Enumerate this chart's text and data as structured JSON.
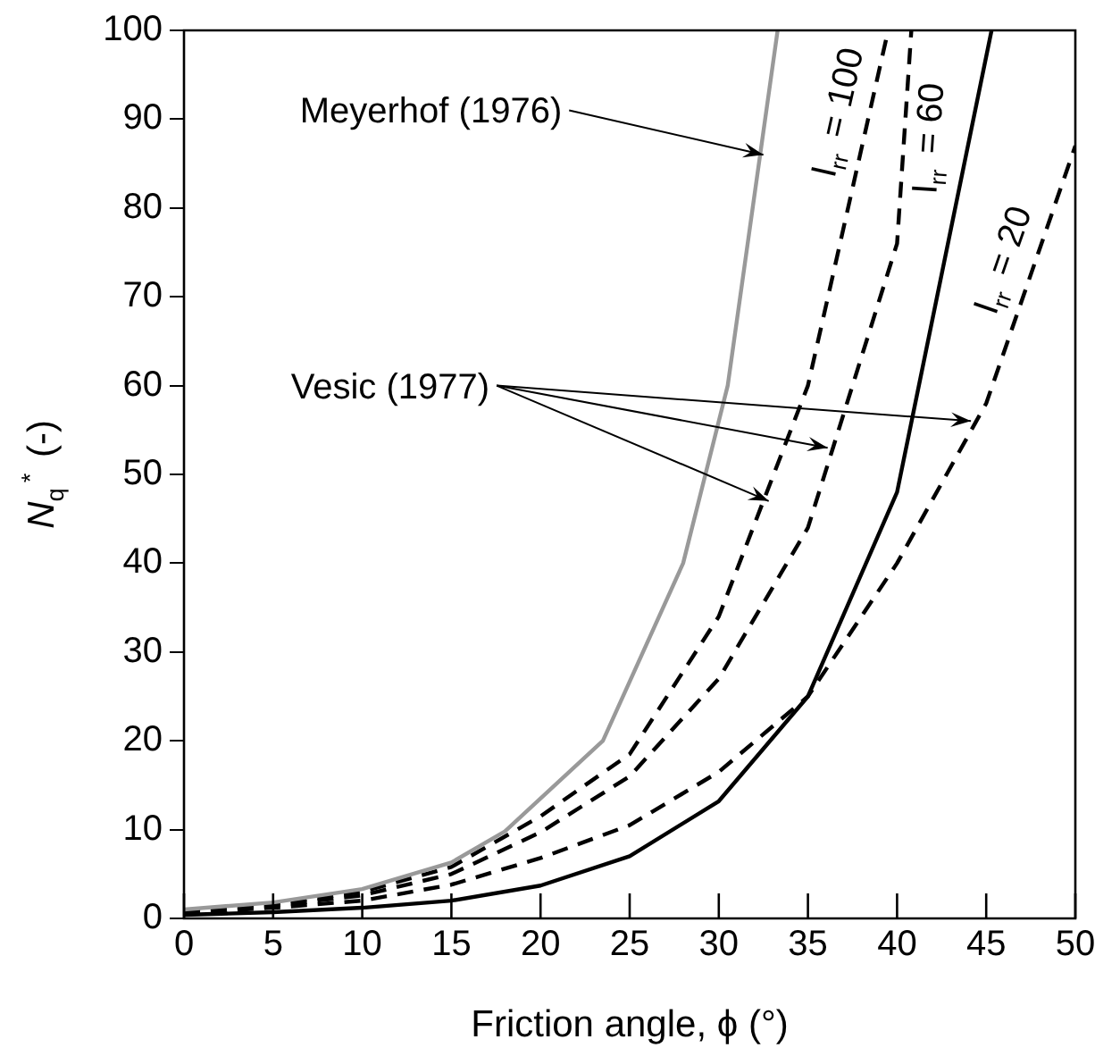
{
  "chart_data": {
    "type": "line",
    "xlabel": "Friction angle, ϕ (°)",
    "ylabel": "N$_{q}$$^{*}$ (-)",
    "xlim": [
      0,
      50
    ],
    "ylim": [
      0,
      100
    ],
    "xticks": [
      0,
      5,
      10,
      15,
      20,
      25,
      30,
      35,
      40,
      45,
      50
    ],
    "yticks": [
      0,
      10,
      20,
      30,
      40,
      50,
      60,
      70,
      80,
      90,
      100
    ],
    "legend": false,
    "marker": "none",
    "annotations": [
      {
        "text": "Meyerhof (1976)",
        "x": 32.7,
        "y": 86
      },
      {
        "text": "Vesic (1977)",
        "x": 33,
        "y": 47
      }
    ],
    "series": [
      {
        "color": "#999999",
        "line_style": "solid",
        "x": [
          0,
          5,
          10,
          15,
          18,
          23.5,
          28,
          30.5,
          33.3
        ],
        "values": [
          1,
          1.8,
          3.3,
          6.3,
          9.8,
          20,
          40,
          60,
          100
        ]
      },
      {
        "color": "#000000",
        "line_style": "solid",
        "x": [
          0,
          5,
          10,
          15,
          20,
          25,
          30,
          35,
          40,
          45.3
        ],
        "values": [
          0.4,
          0.7,
          1.2,
          2,
          3.7,
          7,
          13.2,
          25,
          48,
          100
        ]
      },
      {
        "name": "I$_{rr}$ = 100",
        "color": "#000000",
        "line_style": "dashed",
        "x": [
          0,
          5,
          10,
          15,
          20,
          25,
          30,
          35,
          39.5
        ],
        "values": [
          0.9,
          1.6,
          3,
          5.8,
          11.5,
          18.5,
          34,
          60,
          100
        ]
      },
      {
        "name": "I$_{rr}$ = 60",
        "color": "#000000",
        "line_style": "dashed",
        "x": [
          0,
          5,
          10,
          15,
          20,
          25,
          30,
          35,
          40,
          40.8
        ],
        "values": [
          0.8,
          1.4,
          2.6,
          5,
          9.7,
          16,
          27,
          44,
          76,
          100
        ]
      },
      {
        "name": "I$_{rr}$ = 20",
        "color": "#000000",
        "line_style": "dashed",
        "x": [
          0,
          5,
          10,
          15,
          20,
          25,
          30,
          35,
          40,
          45,
          50
        ],
        "values": [
          0.6,
          1.2,
          2,
          3.8,
          6.8,
          10.5,
          16.5,
          25,
          40,
          58,
          87
        ]
      }
    ]
  }
}
